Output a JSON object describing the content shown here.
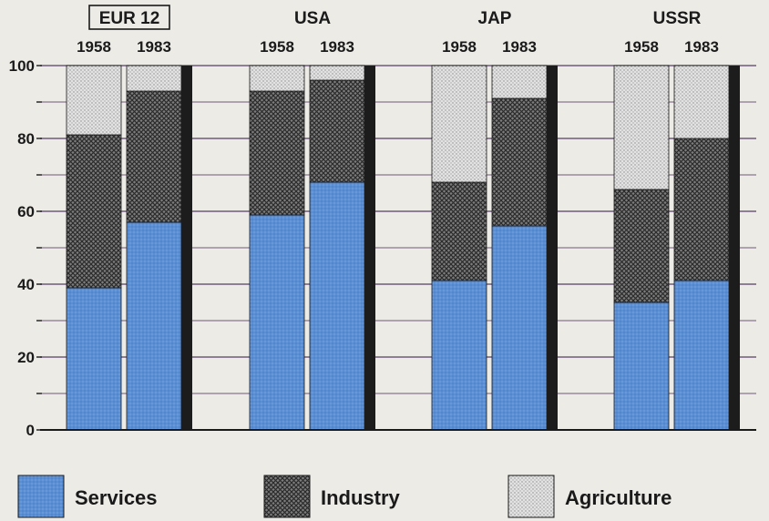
{
  "chart_data": {
    "type": "bar",
    "stacked": true,
    "groups": [
      "EUR 12",
      "USA",
      "JAP",
      "USSR"
    ],
    "categories": [
      "1958",
      "1983"
    ],
    "series": [
      {
        "name": "Services",
        "values": [
          [
            39,
            57
          ],
          [
            59,
            68
          ],
          [
            41,
            56
          ],
          [
            35,
            41
          ]
        ]
      },
      {
        "name": "Industry",
        "values": [
          [
            42,
            36
          ],
          [
            34,
            28
          ],
          [
            27,
            35
          ],
          [
            31,
            39
          ]
        ]
      },
      {
        "name": "Agriculture",
        "values": [
          [
            19,
            7
          ],
          [
            7,
            4
          ],
          [
            32,
            9
          ],
          [
            34,
            20
          ]
        ]
      }
    ],
    "yticks": [
      0,
      20,
      40,
      60,
      80,
      100
    ],
    "ylim": [
      0,
      100
    ],
    "legend_position": "bottom",
    "grid": true,
    "colors": {
      "Services": "#5b8fd4",
      "Industry": "#6b6b6b",
      "Agriculture": "#d6d6d6",
      "shadow": "#1c1c1c",
      "grid": "#6f5a7c"
    }
  }
}
